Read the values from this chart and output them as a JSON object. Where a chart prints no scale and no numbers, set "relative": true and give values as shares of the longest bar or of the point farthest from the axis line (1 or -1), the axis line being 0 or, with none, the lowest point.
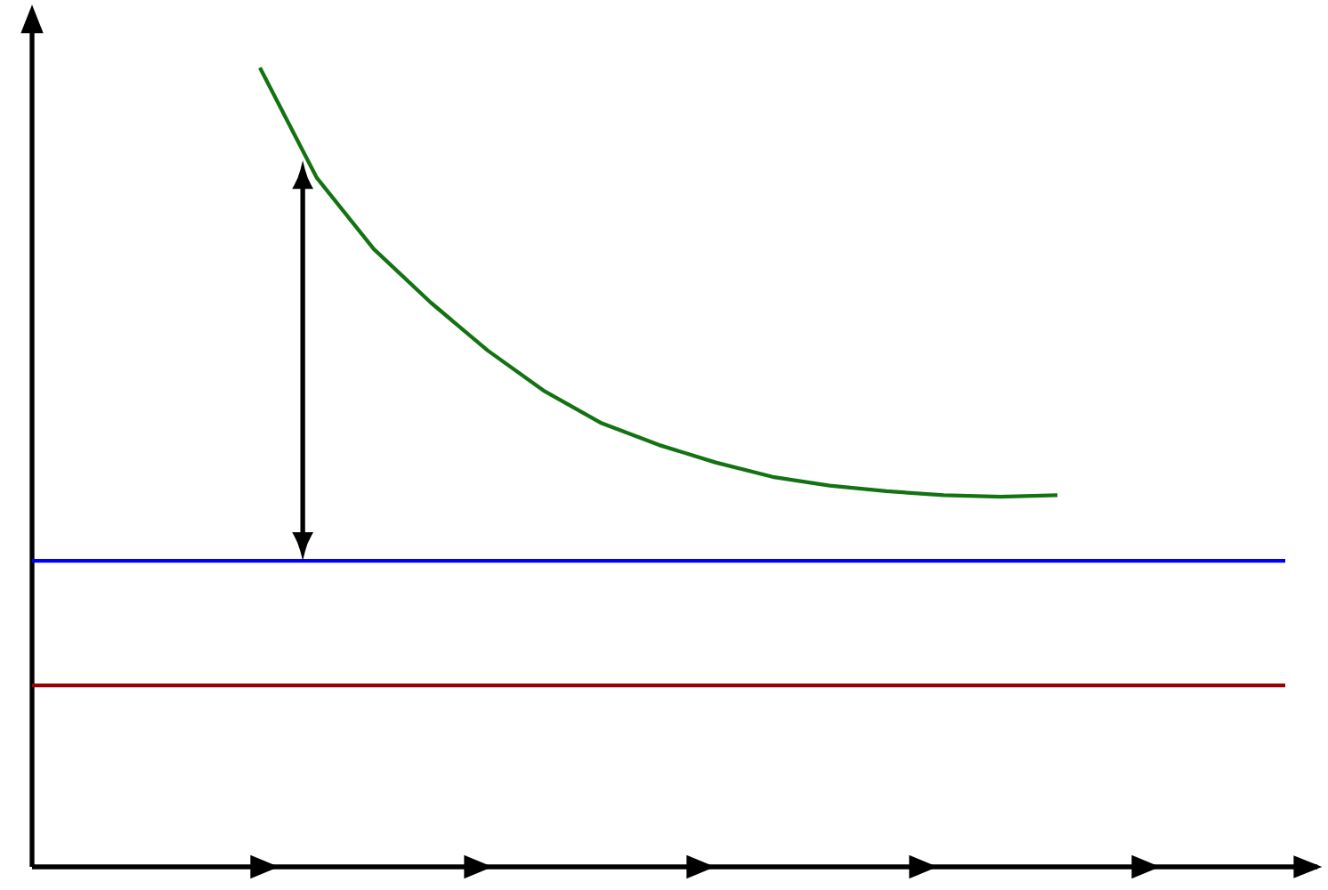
{
  "chart_data": {
    "type": "line",
    "relative": true,
    "marker": "none",
    "line_style": "solid",
    "categories": [
      null,
      null,
      null,
      null,
      null,
      null,
      null,
      null,
      null,
      null,
      null,
      null,
      null,
      null,
      null,
      null,
      null,
      null,
      null,
      null,
      null,
      null,
      null
    ],
    "series": [
      {
        "color": "#137313",
        "values": [
          null,
          null,
          null,
          null,
          1.0,
          0.862,
          0.773,
          0.706,
          0.646,
          0.595,
          0.555,
          0.528,
          0.506,
          0.488,
          0.477,
          0.47,
          0.465,
          0.463,
          0.465,
          null,
          null,
          null,
          null
        ]
      },
      {
        "color": "#0000ee",
        "values": [
          0.383,
          0.383,
          0.383,
          0.383,
          0.383,
          0.383,
          0.383,
          0.383,
          0.383,
          0.383,
          0.383,
          0.383,
          0.383,
          0.383,
          0.383,
          0.383,
          0.383,
          0.383,
          0.383,
          0.383,
          0.383,
          0.383,
          0.383
        ]
      },
      {
        "color": "#990000",
        "values": [
          0.227,
          0.227,
          0.227,
          0.227,
          0.227,
          0.227,
          0.227,
          0.227,
          0.227,
          0.227,
          0.227,
          0.227,
          0.227,
          0.227,
          0.227,
          0.227,
          0.227,
          0.227,
          0.227,
          0.227,
          0.227,
          0.227,
          0.227
        ]
      }
    ]
  }
}
